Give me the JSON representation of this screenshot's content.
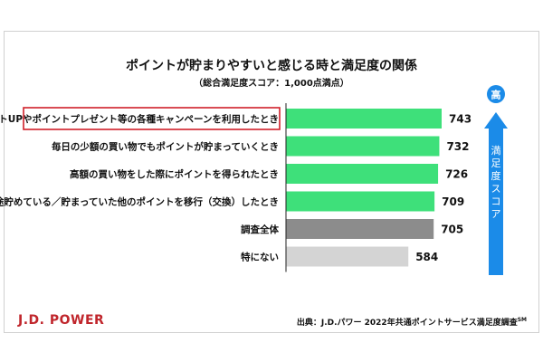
{
  "chart_data": {
    "type": "bar",
    "orientation": "horizontal",
    "title": "ポイントが貯まりやすいと感じる時と満足度の関係",
    "subtitle": "（総合満足度スコア：1,000点満点）",
    "categories": [
      "ポイントUPやポイントプレゼント等の各種キャンペーンを利用したとき",
      "毎日の少額の買い物でもポイントが貯まっていくとき",
      "高額の買い物をした際にポイントを得られたとき",
      "別途貯めている／貯まっていた他のポイントを移行（交換）したとき",
      "調査全体",
      "特にない"
    ],
    "values": [
      743,
      732,
      726,
      709,
      705,
      584
    ],
    "bar_colors": [
      "#3ee07a",
      "#3ee07a",
      "#3ee07a",
      "#3ee07a",
      "#8c8c8c",
      "#d4d4d4"
    ],
    "highlighted_category_index": 0,
    "highlight_color": "#d0202a",
    "axis_visible": false,
    "grid": false,
    "side_arrow": {
      "top_label": "高",
      "label": "満足度スコア",
      "color": "#1b8be8"
    }
  },
  "footer": {
    "logo": "J.D. POWER",
    "source": "出典：J.D.パワー 2022年共通ポイントサービス満足度調査",
    "source_mark": "SM"
  }
}
